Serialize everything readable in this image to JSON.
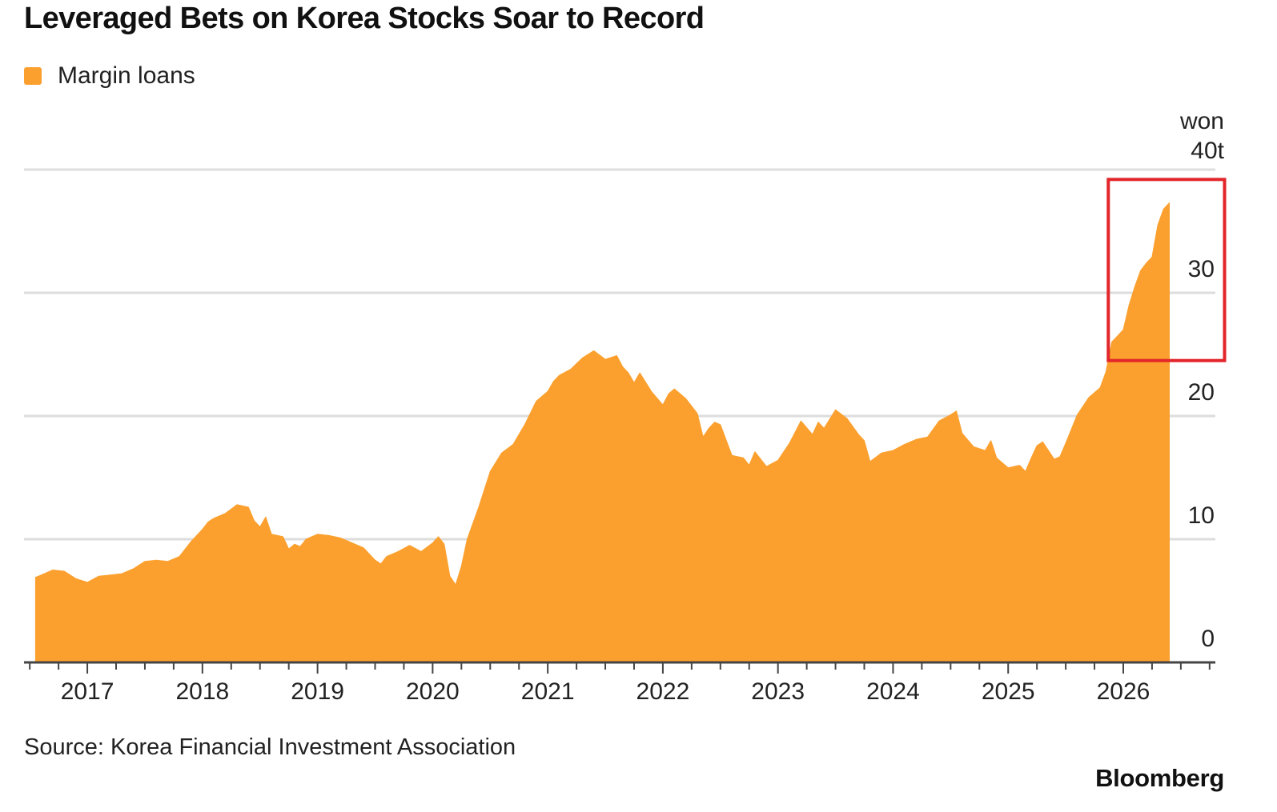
{
  "title": "Leveraged Bets on Korea Stocks Soar to Record",
  "legend": {
    "label": "Margin loans"
  },
  "colors": {
    "series": "#FBA02E",
    "grid": "#DDDDDD",
    "axis": "#444444",
    "highlight": "#E3262B"
  },
  "y_unit_label": "won",
  "source": "Source: Korea Financial Investment Association",
  "brand": "Bloomberg",
  "chart_data": {
    "type": "area",
    "title": "Leveraged Bets on Korea Stocks Soar to Record",
    "xlabel": "",
    "ylabel": "won",
    "ylim": [
      0,
      40
    ],
    "xlim": [
      2016.45,
      2026.8
    ],
    "y_ticks": [
      0,
      10,
      20,
      30,
      40
    ],
    "y_tick_labels": [
      "0",
      "10",
      "20",
      "30",
      "40t"
    ],
    "x_tick_labels": [
      "2017",
      "2018",
      "2019",
      "2020",
      "2021",
      "2022",
      "2023",
      "2024",
      "2025",
      "2026"
    ],
    "grid": true,
    "y_axis_side": "right",
    "highlight_box": {
      "x_range": [
        2025.87,
        2026.88
      ],
      "y_range": [
        24.5,
        39.2
      ]
    },
    "series": [
      {
        "name": "Margin loans",
        "x": [
          2016.55,
          2016.6,
          2016.7,
          2016.8,
          2016.9,
          2017.0,
          2017.1,
          2017.2,
          2017.3,
          2017.4,
          2017.5,
          2017.6,
          2017.7,
          2017.8,
          2017.9,
          2018.0,
          2018.05,
          2018.1,
          2018.2,
          2018.3,
          2018.4,
          2018.45,
          2018.5,
          2018.55,
          2018.6,
          2018.7,
          2018.75,
          2018.8,
          2018.85,
          2018.9,
          2019.0,
          2019.1,
          2019.2,
          2019.3,
          2019.4,
          2019.5,
          2019.55,
          2019.6,
          2019.7,
          2019.8,
          2019.9,
          2020.0,
          2020.05,
          2020.1,
          2020.15,
          2020.2,
          2020.25,
          2020.3,
          2020.4,
          2020.5,
          2020.6,
          2020.7,
          2020.8,
          2020.9,
          2021.0,
          2021.05,
          2021.1,
          2021.2,
          2021.3,
          2021.4,
          2021.5,
          2021.6,
          2021.65,
          2021.7,
          2021.75,
          2021.8,
          2021.9,
          2022.0,
          2022.05,
          2022.1,
          2022.15,
          2022.2,
          2022.3,
          2022.35,
          2022.4,
          2022.45,
          2022.5,
          2022.6,
          2022.7,
          2022.75,
          2022.8,
          2022.9,
          2023.0,
          2023.1,
          2023.2,
          2023.3,
          2023.35,
          2023.4,
          2023.5,
          2023.6,
          2023.7,
          2023.75,
          2023.8,
          2023.9,
          2024.0,
          2024.1,
          2024.2,
          2024.3,
          2024.4,
          2024.5,
          2024.55,
          2024.6,
          2024.7,
          2024.8,
          2024.85,
          2024.9,
          2025.0,
          2025.1,
          2025.15,
          2025.2,
          2025.25,
          2025.3,
          2025.4,
          2025.45,
          2025.5,
          2025.6,
          2025.7,
          2025.8,
          2025.85,
          2025.9,
          2026.0,
          2026.05,
          2026.1,
          2026.15,
          2026.2,
          2026.25,
          2026.3,
          2026.35,
          2026.4
        ],
        "values": [
          6.9,
          7.1,
          7.5,
          7.4,
          6.8,
          6.5,
          7.0,
          7.1,
          7.2,
          7.6,
          8.2,
          8.3,
          8.2,
          8.6,
          9.8,
          10.8,
          11.4,
          11.7,
          12.1,
          12.8,
          12.6,
          11.5,
          11.0,
          11.8,
          10.4,
          10.2,
          9.2,
          9.6,
          9.4,
          10.0,
          10.4,
          10.3,
          10.1,
          9.7,
          9.3,
          8.3,
          8.0,
          8.6,
          9.0,
          9.5,
          9.0,
          9.7,
          10.2,
          9.6,
          7.0,
          6.3,
          7.8,
          10.0,
          12.6,
          15.5,
          17.0,
          17.7,
          19.3,
          21.2,
          22.0,
          22.8,
          23.3,
          23.8,
          24.7,
          25.3,
          24.6,
          24.9,
          24.0,
          23.5,
          22.7,
          23.5,
          22.0,
          20.9,
          21.8,
          22.2,
          21.8,
          21.4,
          20.2,
          18.3,
          19.0,
          19.5,
          19.3,
          16.8,
          16.6,
          16.0,
          17.1,
          15.9,
          16.4,
          17.8,
          19.6,
          18.5,
          19.5,
          19.0,
          20.5,
          19.8,
          18.5,
          18.0,
          16.3,
          17.0,
          17.2,
          17.7,
          18.1,
          18.3,
          19.6,
          20.1,
          20.4,
          18.6,
          17.5,
          17.2,
          18.0,
          16.6,
          15.8,
          16.0,
          15.5,
          16.6,
          17.6,
          17.9,
          16.5,
          16.7,
          17.8,
          20.1,
          21.5,
          22.3,
          23.6,
          26.0,
          27.0,
          29.0,
          30.5,
          31.8,
          32.4,
          32.9,
          35.5,
          36.8,
          37.3
        ]
      }
    ]
  }
}
